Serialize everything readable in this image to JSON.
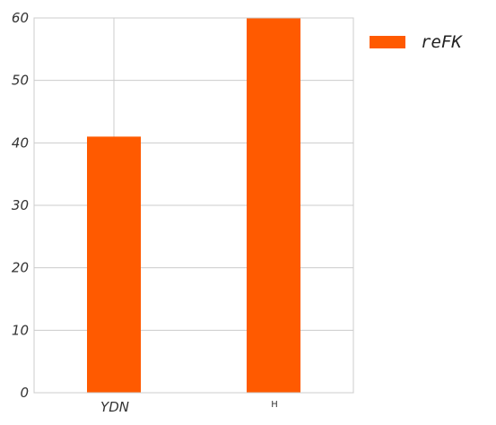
{
  "chart_data": {
    "type": "bar",
    "categories": [
      "YDN",
      "H"
    ],
    "series": [
      {
        "name": "reFK",
        "values": [
          41,
          60
        ],
        "color": "#ff5a00"
      }
    ],
    "ylim": [
      0,
      60
    ],
    "yticks": [
      0,
      10,
      20,
      30,
      40,
      50,
      60
    ],
    "grid": true,
    "legend": "top-right, outside plot"
  }
}
